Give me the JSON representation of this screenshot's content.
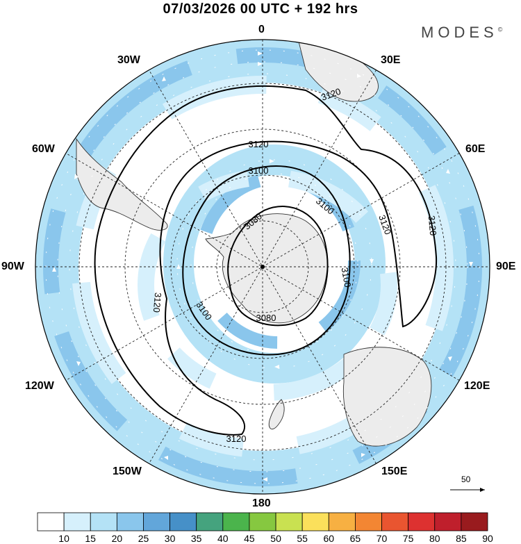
{
  "header": {
    "title": "07/03/2026  00 UTC  + 192 hrs",
    "brand": "MODES",
    "brand_mark": "©"
  },
  "map": {
    "projection": "south-polar-stereographic",
    "longitude_labels": [
      "0",
      "30E",
      "60E",
      "90E",
      "120E",
      "150E",
      "180",
      "150W",
      "120W",
      "90W",
      "60W",
      "30W"
    ],
    "contour_labels": [
      "3080",
      "3080",
      "3100",
      "3100",
      "3100",
      "3100",
      "3120",
      "3120",
      "3120",
      "3120",
      "3120",
      "3120"
    ],
    "ocean_color": "#ffffff",
    "land_color": "#ececec"
  },
  "wind_reference": {
    "value": "50"
  },
  "legend": {
    "values": [
      "10",
      "15",
      "20",
      "25",
      "30",
      "35",
      "40",
      "45",
      "50",
      "55",
      "60",
      "65",
      "70",
      "75",
      "80",
      "85",
      "90"
    ],
    "colors": [
      "#ffffff",
      "#d6f0fc",
      "#b4e2f6",
      "#8ac6ec",
      "#62a6da",
      "#4690c8",
      "#45a37e",
      "#4bb44c",
      "#86c840",
      "#c9e151",
      "#fbe05b",
      "#f7b042",
      "#f38633",
      "#e95530",
      "#dd3130",
      "#bf1f2c",
      "#991b1e"
    ]
  }
}
